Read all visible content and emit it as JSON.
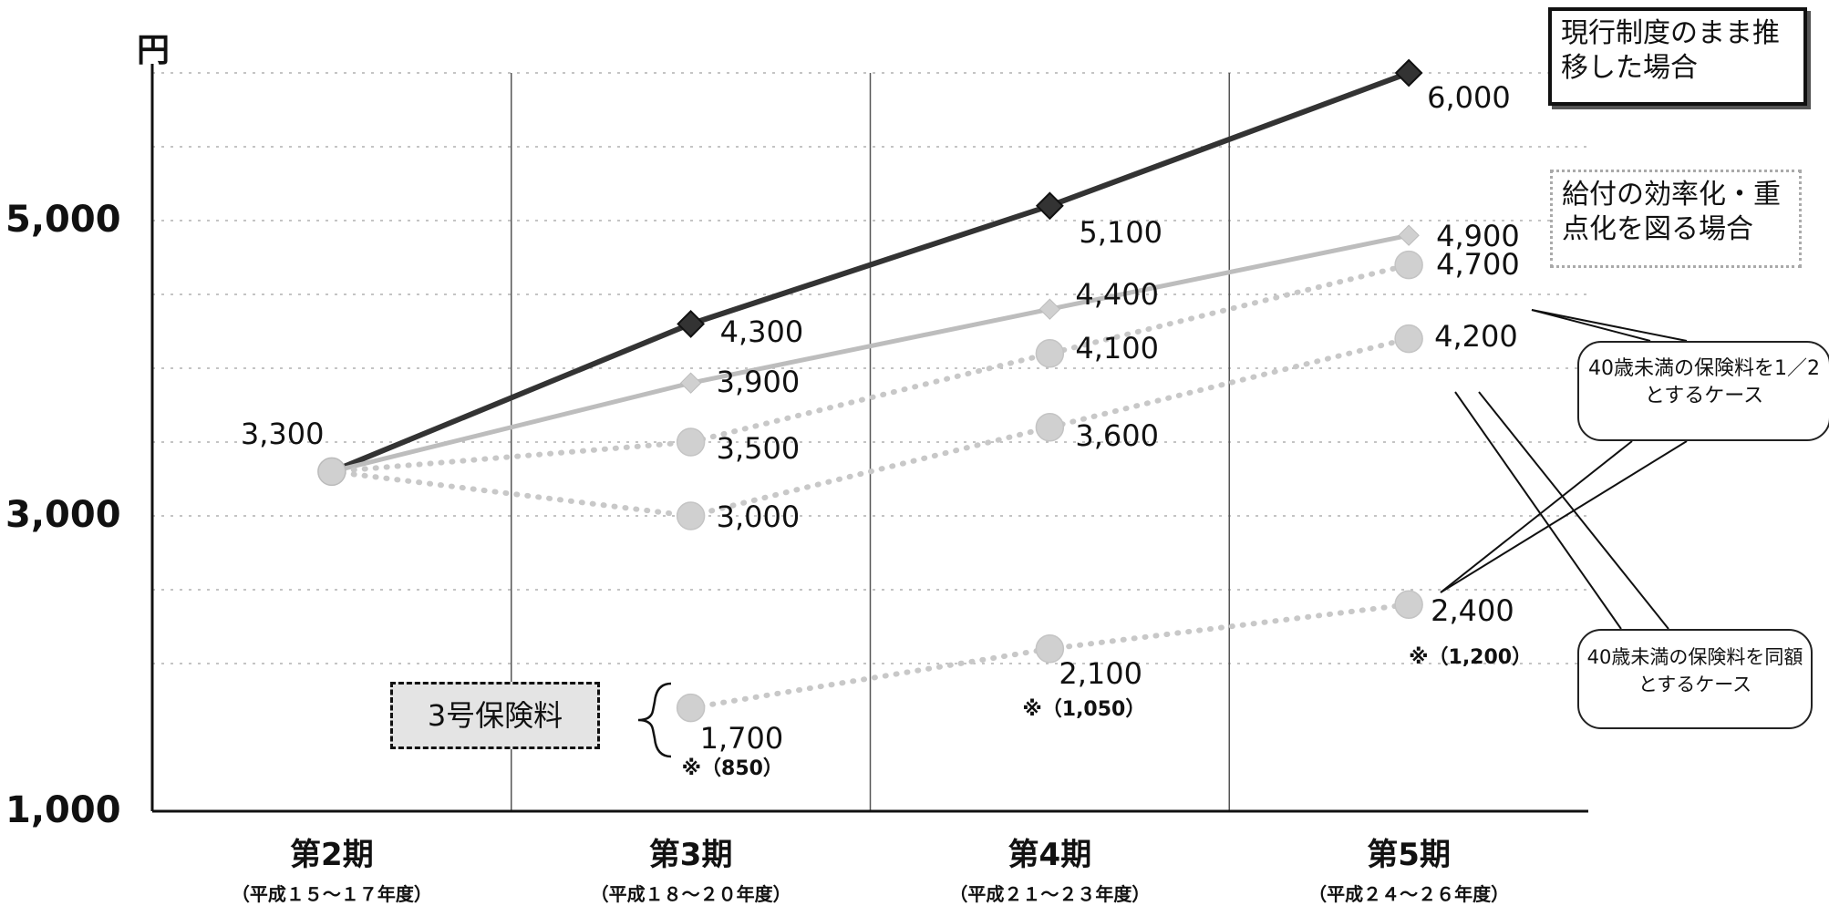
{
  "chart_data": {
    "type": "line",
    "yunit": "円",
    "ylim": [
      1000,
      6000
    ],
    "yticks": [
      1000,
      3000,
      5000
    ],
    "ytick_labels": [
      "1,000",
      "3,000",
      "5,000"
    ],
    "grid": true,
    "categories": [
      {
        "label": "第2期",
        "sub": "（平成１５～１７年度）"
      },
      {
        "label": "第3期",
        "sub": "（平成１８～２０年度）"
      },
      {
        "label": "第4期",
        "sub": "（平成２１～２３年度）"
      },
      {
        "label": "第5期",
        "sub": "（平成２４～２６年度）"
      }
    ],
    "series": [
      {
        "name": "現行制度のまま推移した場合",
        "style": "solid-dark",
        "values": [
          3300,
          4300,
          5100,
          6000
        ],
        "labels": [
          "3,300",
          "4,300",
          "5,100",
          "6,000"
        ]
      },
      {
        "style": "solid-light",
        "values": [
          3300,
          3900,
          4400,
          4900
        ],
        "labels": [
          "",
          "3,900",
          "4,400",
          "4,900"
        ]
      },
      {
        "style": "dotted",
        "values": [
          3300,
          3500,
          4100,
          4700
        ],
        "labels": [
          "",
          "3,500",
          "4,100",
          "4,700"
        ]
      },
      {
        "style": "dotted",
        "values": [
          3300,
          3000,
          3600,
          4200
        ],
        "labels": [
          "",
          "3,000",
          "3,600",
          "4,200"
        ]
      },
      {
        "name": "3号保険料",
        "style": "dotted",
        "values": [
          null,
          1700,
          2100,
          2400
        ],
        "labels": [
          "",
          "1,700",
          "2,100",
          "2,400"
        ],
        "notes": [
          "",
          "※（850）",
          "※（1,050）",
          "※（1,200）"
        ]
      }
    ],
    "legend": {
      "current": "現行制度のまま推移した場合",
      "efficient": "給付の効率化・重点化を図る場合",
      "half_case": "40歳未満の保険料を1／2とするケース",
      "same_case": "40歳未満の保険料を同額とするケース"
    },
    "colors": {
      "dark": "#333333",
      "light": "#bdbdbd",
      "dotted": "#c8c8c8",
      "marker_light": "#d0d0d0",
      "grid": "#b0b0b0"
    }
  }
}
